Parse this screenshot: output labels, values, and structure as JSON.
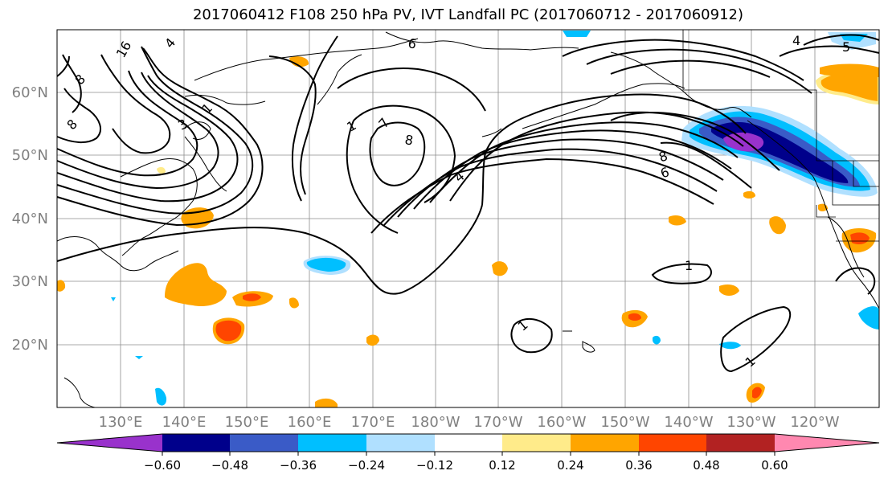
{
  "title": "2017060412 F108 250 hPa PV, IVT Landfall PC (2017060712 - 2017060912)",
  "map": {
    "lat_labels": [
      "60°N",
      "50°N",
      "40°N",
      "30°N",
      "20°N"
    ],
    "lon_labels": [
      "130°E",
      "140°E",
      "150°E",
      "160°E",
      "170°E",
      "180°W",
      "170°W",
      "160°W",
      "150°W",
      "140°W",
      "130°W",
      "120°W"
    ],
    "contour_labels": [
      "16",
      "4",
      "8",
      "8",
      "1",
      "3",
      "6",
      "7",
      "8",
      "1",
      "4",
      "8",
      "6",
      "1",
      "1",
      "1",
      "4",
      "5"
    ]
  },
  "colorbar": {
    "colors": [
      "#9932cc",
      "#00008b",
      "#3a5bc7",
      "#00bfff",
      "#b0e0ff",
      "#ffffff",
      "#ffffff",
      "#ffeb8a",
      "#ffa500",
      "#ff4500",
      "#b22222",
      "#ff88b0"
    ],
    "ticks": [
      "−0.60",
      "−0.48",
      "−0.36",
      "−0.24",
      "−0.12",
      "0.12",
      "0.24",
      "0.36",
      "0.48",
      "0.60"
    ]
  }
}
